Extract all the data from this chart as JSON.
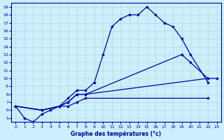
{
  "xlabel": "Graphe des températures (°c)",
  "hours": [
    0,
    1,
    2,
    3,
    4,
    5,
    6,
    7,
    8,
    9,
    10,
    11,
    12,
    13,
    14,
    15,
    16,
    17,
    18,
    19,
    20,
    21,
    22,
    23
  ],
  "line1_x": [
    0,
    1,
    2,
    3,
    4,
    5,
    6,
    7,
    8,
    9,
    10,
    11,
    12,
    13,
    14,
    15,
    16,
    17,
    18,
    19,
    20,
    22
  ],
  "line1_y": [
    6.5,
    5.0,
    4.5,
    5.5,
    6.0,
    6.5,
    7.5,
    8.5,
    8.5,
    9.5,
    13.0,
    16.5,
    17.5,
    18.0,
    18.0,
    19.0,
    18.0,
    17.0,
    16.5,
    15.0,
    13.0,
    9.5
  ],
  "line2_x": [
    0,
    3,
    5,
    6,
    7,
    8,
    19,
    20,
    22,
    23
  ],
  "line2_y": [
    6.5,
    6.0,
    6.5,
    7.0,
    8.0,
    8.0,
    13.0,
    12.0,
    10.0,
    10.0
  ],
  "line3_x": [
    0,
    3,
    5,
    6,
    7,
    8,
    22
  ],
  "line3_y": [
    6.5,
    6.0,
    6.5,
    7.0,
    8.0,
    8.0,
    10.0
  ],
  "line4_x": [
    0,
    3,
    5,
    6,
    7,
    8,
    22
  ],
  "line4_y": [
    6.5,
    6.0,
    6.5,
    6.5,
    7.0,
    7.5,
    7.5
  ],
  "ylim": [
    5,
    19
  ],
  "xlim": [
    0,
    23
  ],
  "yticks": [
    5,
    6,
    7,
    8,
    9,
    10,
    11,
    12,
    13,
    14,
    15,
    16,
    17,
    18,
    19
  ],
  "xticks": [
    0,
    1,
    2,
    3,
    4,
    5,
    6,
    7,
    8,
    9,
    10,
    11,
    12,
    13,
    14,
    15,
    16,
    17,
    18,
    19,
    20,
    21,
    22,
    23
  ],
  "line_color": "#0000aa",
  "bg_color": "#cceeff",
  "grid_color": "#aaddcc"
}
